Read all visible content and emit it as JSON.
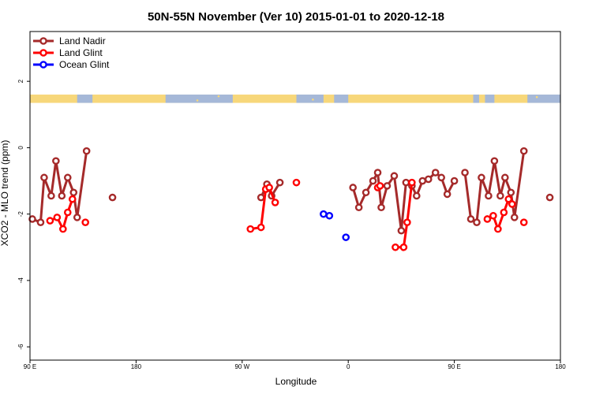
{
  "chart_data": {
    "type": "line",
    "title": "50N-55N November (Ver 10)   2015-01-01 to 2020-12-18",
    "xlabel": "Longitude",
    "ylabel": "XCO2 - MLO trend (ppm)",
    "xlim": [
      90,
      540
    ],
    "ylim": [
      -6.4,
      3.5
    ],
    "x_ticks": [
      {
        "value": 90,
        "label": "90 E"
      },
      {
        "value": 180,
        "label": "180"
      },
      {
        "value": 270,
        "label": "90 W"
      },
      {
        "value": 360,
        "label": "0"
      },
      {
        "value": 450,
        "label": "90 E"
      },
      {
        "value": 540,
        "label": "180"
      }
    ],
    "y_ticks": [
      {
        "value": 2,
        "label": "2"
      },
      {
        "value": 0,
        "label": "0"
      },
      {
        "value": -2,
        "label": "-2"
      },
      {
        "value": -4,
        "label": "-4"
      },
      {
        "value": -6,
        "label": "-6"
      }
    ],
    "land_mask_band": {
      "ymin": 1.35,
      "ymax": 1.6,
      "ocean_color": "#a5b8d8",
      "land_color": "#f7d77a"
    },
    "legend": {
      "position": "top-left"
    },
    "series": [
      {
        "name": "Land Nadir",
        "color": "#a52a2a",
        "segments": [
          [
            [
              92,
              -2.15
            ],
            [
              99,
              -2.25
            ],
            [
              102,
              -0.9
            ],
            [
              108,
              -1.45
            ],
            [
              112,
              -0.4
            ],
            [
              117,
              -1.45
            ],
            [
              122,
              -0.9
            ],
            [
              127,
              -1.35
            ],
            [
              130,
              -2.1
            ],
            [
              138,
              -0.1
            ]
          ],
          [
            [
              160,
              -1.5
            ]
          ],
          [
            [
              286,
              -1.5
            ],
            [
              291,
              -1.1
            ],
            [
              295,
              -1.45
            ],
            [
              302,
              -1.05
            ]
          ],
          [
            [
              364,
              -1.2
            ],
            [
              369,
              -1.8
            ],
            [
              375,
              -1.35
            ],
            [
              381,
              -1.0
            ],
            [
              385,
              -0.75
            ],
            [
              388,
              -1.8
            ],
            [
              393,
              -1.15
            ],
            [
              399,
              -0.85
            ],
            [
              405,
              -2.5
            ],
            [
              409,
              -1.05
            ],
            [
              414,
              -1.15
            ],
            [
              418,
              -1.45
            ],
            [
              423,
              -1.0
            ],
            [
              428,
              -0.95
            ],
            [
              434,
              -0.75
            ],
            [
              439,
              -0.9
            ],
            [
              444,
              -1.4
            ],
            [
              450,
              -1.0
            ]
          ],
          [
            [
              459,
              -0.75
            ],
            [
              464,
              -2.15
            ],
            [
              469,
              -2.25
            ],
            [
              473,
              -0.9
            ],
            [
              479,
              -1.45
            ],
            [
              484,
              -0.4
            ],
            [
              489,
              -1.45
            ],
            [
              493,
              -0.9
            ],
            [
              498,
              -1.35
            ],
            [
              501,
              -2.1
            ],
            [
              509,
              -0.1
            ]
          ],
          [
            [
              531,
              -1.5
            ]
          ]
        ]
      },
      {
        "name": "Land Glint",
        "color": "#ff0000",
        "segments": [
          [
            [
              107,
              -2.2
            ],
            [
              113,
              -2.1
            ],
            [
              118,
              -2.45
            ],
            [
              122,
              -1.95
            ],
            [
              126,
              -1.55
            ]
          ],
          [
            [
              137,
              -2.25
            ]
          ],
          [
            [
              277,
              -2.45
            ],
            [
              286,
              -2.4
            ],
            [
              290,
              -1.25
            ],
            [
              293,
              -1.2
            ],
            [
              298,
              -1.65
            ]
          ],
          [
            [
              316,
              -1.05
            ]
          ],
          [
            [
              385,
              -1.2
            ],
            [
              387,
              -1.15
            ]
          ],
          [
            [
              400,
              -3.0
            ],
            [
              407,
              -3.0
            ],
            [
              410,
              -2.25
            ],
            [
              414,
              -1.05
            ]
          ],
          [
            [
              478,
              -2.15
            ],
            [
              483,
              -2.05
            ],
            [
              487,
              -2.45
            ],
            [
              492,
              -1.95
            ],
            [
              496,
              -1.55
            ],
            [
              499,
              -1.7
            ]
          ],
          [
            [
              509,
              -2.25
            ]
          ]
        ]
      },
      {
        "name": "Ocean Glint",
        "color": "#0000ff",
        "segments": [
          [
            [
              339,
              -2.0
            ],
            [
              344,
              -2.05
            ]
          ],
          [
            [
              358,
              -2.7
            ]
          ]
        ]
      }
    ]
  }
}
